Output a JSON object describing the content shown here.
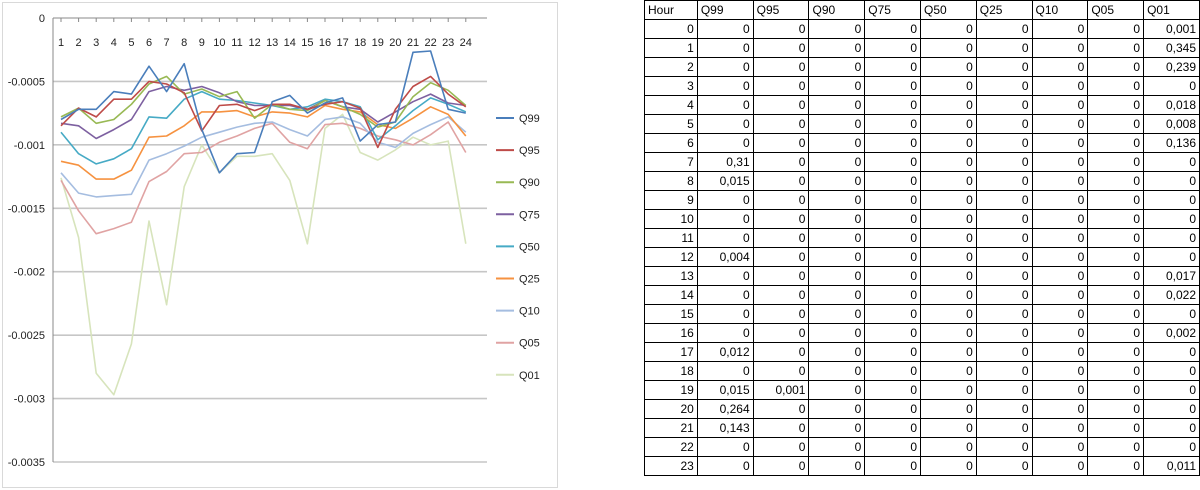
{
  "chart_data": [
    {
      "type": "line",
      "title": "",
      "xlabel": "",
      "ylabel": "",
      "x": [
        1,
        2,
        3,
        4,
        5,
        6,
        7,
        8,
        9,
        10,
        11,
        12,
        13,
        14,
        15,
        16,
        17,
        18,
        19,
        20,
        21,
        22,
        23,
        24
      ],
      "ylim": [
        -0.0035,
        0
      ],
      "yticks": [
        0,
        -0.0005,
        -0.001,
        -0.0015,
        -0.002,
        -0.0025,
        -0.003,
        -0.0035
      ],
      "ytick_labels": [
        "0",
        "-0.0005",
        "-0.001",
        "-0.0015",
        "-0.002",
        "-0.0025",
        "-0.003",
        "-0.0035"
      ],
      "grid": true,
      "legend": "right",
      "series": [
        {
          "name": "Q99",
          "color": "#4a7ebb",
          "values": [
            -0.0008,
            -0.00072,
            -0.00072,
            -0.00058,
            -0.0006,
            -0.00038,
            -0.00058,
            -0.00036,
            -0.00088,
            -0.00122,
            -0.00107,
            -0.00106,
            -0.00066,
            -0.00061,
            -0.00075,
            -0.00067,
            -0.00063,
            -0.00097,
            -0.00084,
            -0.00082,
            -0.00027,
            -0.00026,
            -0.00072,
            -0.00075
          ]
        },
        {
          "name": "Q95",
          "color": "#be4b48",
          "values": [
            -0.00085,
            -0.00071,
            -0.00078,
            -0.00064,
            -0.00064,
            -0.0005,
            -0.00052,
            -0.00059,
            -0.00089,
            -0.00069,
            -0.00068,
            -0.00073,
            -0.00068,
            -0.00068,
            -0.00072,
            -0.00068,
            -0.00066,
            -0.00071,
            -0.00102,
            -0.00072,
            -0.00054,
            -0.00046,
            -0.0006,
            -0.0007
          ]
        },
        {
          "name": "Q90",
          "color": "#98b954",
          "values": [
            -0.00078,
            -0.00071,
            -0.00083,
            -0.0008,
            -0.00068,
            -0.00052,
            -0.00046,
            -0.0006,
            -0.00056,
            -0.00062,
            -0.00058,
            -0.00079,
            -0.00068,
            -0.00072,
            -0.00073,
            -0.00065,
            -0.0007,
            -0.00076,
            -0.00086,
            -0.00082,
            -0.00062,
            -0.00051,
            -0.00057,
            -0.00069
          ]
        },
        {
          "name": "Q75",
          "color": "#7d60a0",
          "values": [
            -0.00083,
            -0.00085,
            -0.00095,
            -0.00088,
            -0.0008,
            -0.00058,
            -0.00054,
            -0.00057,
            -0.00054,
            -0.00059,
            -0.00066,
            -0.00069,
            -0.00069,
            -0.00069,
            -0.00072,
            -0.00065,
            -0.0007,
            -0.00072,
            -0.00082,
            -0.00074,
            -0.00066,
            -0.0006,
            -0.00067,
            -0.00069
          ]
        },
        {
          "name": "Q50",
          "color": "#46aac5",
          "values": [
            -0.0009,
            -0.00107,
            -0.00115,
            -0.00111,
            -0.00103,
            -0.00078,
            -0.00079,
            -0.00064,
            -0.00058,
            -0.00064,
            -0.00065,
            -0.00067,
            -0.00069,
            -0.00072,
            -0.0007,
            -0.00064,
            -0.00066,
            -0.0007,
            -0.00096,
            -0.00085,
            -0.00073,
            -0.00063,
            -0.00068,
            -0.00074
          ]
        },
        {
          "name": "Q25",
          "color": "#f69240",
          "values": [
            -0.00113,
            -0.00116,
            -0.00127,
            -0.00127,
            -0.0012,
            -0.00094,
            -0.00093,
            -0.00085,
            -0.00074,
            -0.00074,
            -0.00073,
            -0.00078,
            -0.00074,
            -0.00075,
            -0.00078,
            -0.00069,
            -0.00072,
            -0.00074,
            -0.00084,
            -0.00087,
            -0.00079,
            -0.0007,
            -0.00076,
            -0.00093
          ]
        },
        {
          "name": "Q10",
          "color": "#a5bde0",
          "values": [
            -0.00122,
            -0.00138,
            -0.00141,
            -0.0014,
            -0.00139,
            -0.00112,
            -0.00107,
            -0.00101,
            -0.00094,
            -0.0009,
            -0.00086,
            -0.00083,
            -0.00082,
            -0.00088,
            -0.00093,
            -0.0008,
            -0.00078,
            -0.00083,
            -0.00098,
            -0.00102,
            -0.00091,
            -0.00084,
            -0.00078,
            -0.0009
          ]
        },
        {
          "name": "Q05",
          "color": "#e0a3a3",
          "values": [
            -0.00128,
            -0.00152,
            -0.0017,
            -0.00166,
            -0.00161,
            -0.00129,
            -0.00121,
            -0.00107,
            -0.00106,
            -0.00098,
            -0.00093,
            -0.00087,
            -0.00083,
            -0.00098,
            -0.00103,
            -0.00084,
            -0.00083,
            -0.00087,
            -0.00093,
            -0.00096,
            -0.001,
            -0.00092,
            -0.00082,
            -0.00106
          ]
        },
        {
          "name": "Q01",
          "color": "#d7e4bc",
          "values": [
            -0.00126,
            -0.00173,
            -0.0028,
            -0.00297,
            -0.00257,
            -0.0016,
            -0.00226,
            -0.00133,
            -0.001,
            -0.00122,
            -0.00109,
            -0.00109,
            -0.00107,
            -0.00128,
            -0.00178,
            -0.00087,
            -0.00076,
            -0.00106,
            -0.00112,
            -0.00104,
            -0.00094,
            -0.001,
            -0.00097,
            -0.00178
          ]
        }
      ]
    },
    {
      "type": "table",
      "columns": [
        "Hour",
        "Q99",
        "Q95",
        "Q90",
        "Q75",
        "Q50",
        "Q25",
        "Q10",
        "Q05",
        "Q01"
      ],
      "rows": [
        [
          "0",
          "0",
          "0",
          "0",
          "0",
          "0",
          "0",
          "0",
          "0",
          "0,001"
        ],
        [
          "1",
          "0",
          "0",
          "0",
          "0",
          "0",
          "0",
          "0",
          "0",
          "0,345"
        ],
        [
          "2",
          "0",
          "0",
          "0",
          "0",
          "0",
          "0",
          "0",
          "0",
          "0,239"
        ],
        [
          "3",
          "0",
          "0",
          "0",
          "0",
          "0",
          "0",
          "0",
          "0",
          "0"
        ],
        [
          "4",
          "0",
          "0",
          "0",
          "0",
          "0",
          "0",
          "0",
          "0",
          "0,018"
        ],
        [
          "5",
          "0",
          "0",
          "0",
          "0",
          "0",
          "0",
          "0",
          "0",
          "0,008"
        ],
        [
          "6",
          "0",
          "0",
          "0",
          "0",
          "0",
          "0",
          "0",
          "0",
          "0,136"
        ],
        [
          "7",
          "0,31",
          "0",
          "0",
          "0",
          "0",
          "0",
          "0",
          "0",
          "0"
        ],
        [
          "8",
          "0,015",
          "0",
          "0",
          "0",
          "0",
          "0",
          "0",
          "0",
          "0"
        ],
        [
          "9",
          "0",
          "0",
          "0",
          "0",
          "0",
          "0",
          "0",
          "0",
          "0"
        ],
        [
          "10",
          "0",
          "0",
          "0",
          "0",
          "0",
          "0",
          "0",
          "0",
          "0"
        ],
        [
          "11",
          "0",
          "0",
          "0",
          "0",
          "0",
          "0",
          "0",
          "0",
          "0"
        ],
        [
          "12",
          "0,004",
          "0",
          "0",
          "0",
          "0",
          "0",
          "0",
          "0",
          "0"
        ],
        [
          "13",
          "0",
          "0",
          "0",
          "0",
          "0",
          "0",
          "0",
          "0",
          "0,017"
        ],
        [
          "14",
          "0",
          "0",
          "0",
          "0",
          "0",
          "0",
          "0",
          "0",
          "0,022"
        ],
        [
          "15",
          "0",
          "0",
          "0",
          "0",
          "0",
          "0",
          "0",
          "0",
          "0"
        ],
        [
          "16",
          "0",
          "0",
          "0",
          "0",
          "0",
          "0",
          "0",
          "0",
          "0,002"
        ],
        [
          "17",
          "0,012",
          "0",
          "0",
          "0",
          "0",
          "0",
          "0",
          "0",
          "0"
        ],
        [
          "18",
          "0",
          "0",
          "0",
          "0",
          "0",
          "0",
          "0",
          "0",
          "0"
        ],
        [
          "19",
          "0,015",
          "0,001",
          "0",
          "0",
          "0",
          "0",
          "0",
          "0",
          "0"
        ],
        [
          "20",
          "0,264",
          "0",
          "0",
          "0",
          "0",
          "0",
          "0",
          "0",
          "0"
        ],
        [
          "21",
          "0,143",
          "0",
          "0",
          "0",
          "0",
          "0",
          "0",
          "0",
          "0"
        ],
        [
          "22",
          "0",
          "0",
          "0",
          "0",
          "0",
          "0",
          "0",
          "0",
          "0"
        ],
        [
          "23",
          "0",
          "0",
          "0",
          "0",
          "0",
          "0",
          "0",
          "0",
          "0,011"
        ]
      ]
    }
  ]
}
